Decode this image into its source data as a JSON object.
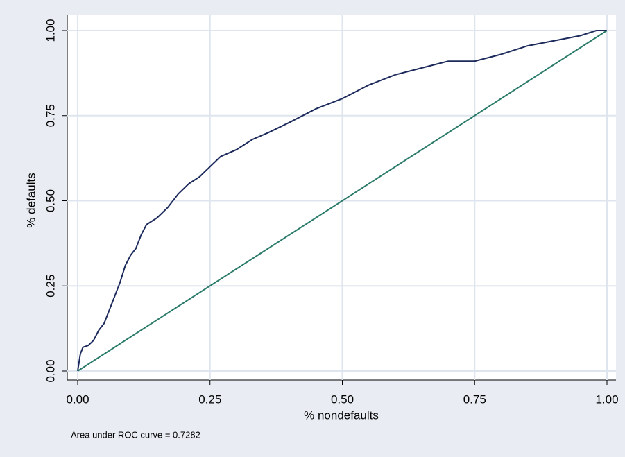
{
  "chart_data": {
    "type": "line",
    "xlabel": "% nondefaults",
    "ylabel": "% defaults",
    "note": "Area under ROC curve = 0.7282",
    "xlim": [
      0,
      1
    ],
    "ylim": [
      0,
      1
    ],
    "xticks": [
      {
        "value": 0,
        "label": "0.00"
      },
      {
        "value": 0.25,
        "label": "0.25"
      },
      {
        "value": 0.5,
        "label": "0.50"
      },
      {
        "value": 0.75,
        "label": "0.75"
      },
      {
        "value": 1,
        "label": "1.00"
      }
    ],
    "yticks": [
      {
        "value": 0,
        "label": "0.00"
      },
      {
        "value": 0.25,
        "label": "0.25"
      },
      {
        "value": 0.5,
        "label": "0.50"
      },
      {
        "value": 0.75,
        "label": "0.75"
      },
      {
        "value": 1,
        "label": "1.00"
      }
    ],
    "grid": true,
    "series": [
      {
        "color": "#1c2a5c",
        "x": [
          0,
          0.005,
          0.01,
          0.02,
          0.03,
          0.04,
          0.05,
          0.06,
          0.07,
          0.08,
          0.09,
          0.1,
          0.11,
          0.12,
          0.13,
          0.15,
          0.17,
          0.19,
          0.21,
          0.23,
          0.25,
          0.27,
          0.3,
          0.33,
          0.36,
          0.4,
          0.45,
          0.5,
          0.55,
          0.6,
          0.65,
          0.7,
          0.75,
          0.8,
          0.85,
          0.9,
          0.95,
          0.98,
          1
        ],
        "values": [
          0,
          0.05,
          0.07,
          0.075,
          0.09,
          0.12,
          0.14,
          0.18,
          0.22,
          0.26,
          0.31,
          0.34,
          0.36,
          0.4,
          0.43,
          0.45,
          0.48,
          0.52,
          0.55,
          0.57,
          0.6,
          0.63,
          0.65,
          0.68,
          0.7,
          0.73,
          0.77,
          0.8,
          0.84,
          0.87,
          0.89,
          0.91,
          0.91,
          0.93,
          0.955,
          0.97,
          0.985,
          1,
          1
        ]
      },
      {
        "color": "#2a7a6a",
        "x": [
          0,
          1
        ],
        "values": [
          0,
          1
        ]
      }
    ]
  }
}
